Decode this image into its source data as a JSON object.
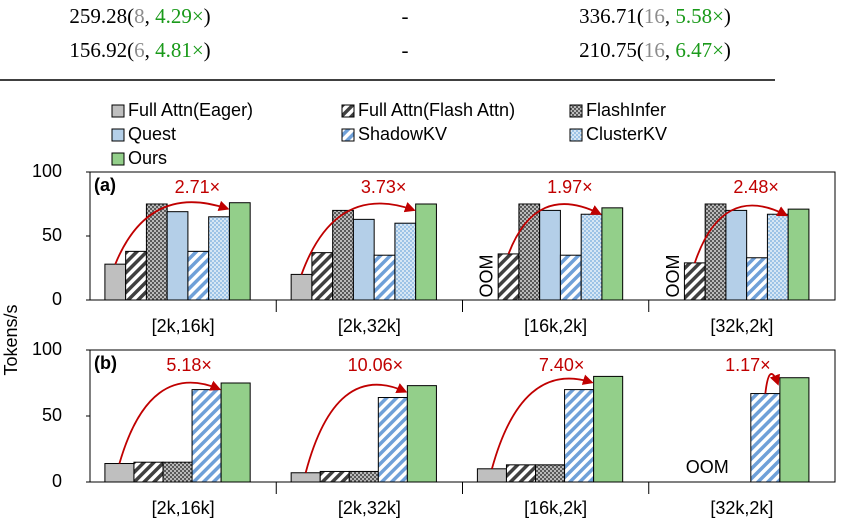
{
  "table": {
    "rows": [
      [
        {
          "parts": [
            "259.28(",
            "8",
            ", ",
            "4.29×",
            ")"
          ]
        },
        {
          "parts": [
            "-"
          ]
        },
        {
          "parts": [
            "336.71(",
            "16",
            ", ",
            "5.58×",
            ")"
          ]
        }
      ],
      [
        {
          "parts": [
            "156.92(",
            "6",
            ", ",
            "4.81×",
            ")"
          ]
        },
        {
          "parts": [
            "-"
          ]
        },
        {
          "parts": [
            "210.75(",
            "16",
            ", ",
            "6.47×",
            ")"
          ]
        }
      ]
    ]
  },
  "chart_data": [
    {
      "type": "bar",
      "title": "(a)",
      "y_label": "Tokens/s",
      "categories": [
        "[2k,16k]",
        "[2k,32k]",
        "[16k,2k]",
        "[32k,2k]"
      ],
      "ylim": [
        0,
        100
      ],
      "yticks": [
        0,
        50,
        100
      ],
      "missing_label": "OOM",
      "speedups": [
        "2.71×",
        "3.73×",
        "1.97×",
        "2.48×"
      ],
      "series": [
        {
          "name": "Full Attn(Eager)",
          "color": "#bfbfbf",
          "pattern": "solid",
          "values": [
            28,
            20,
            null,
            null
          ]
        },
        {
          "name": "Full Attn(Flash Attn)",
          "color": "#404040",
          "pattern": "hatch",
          "values": [
            38,
            37,
            36,
            29
          ]
        },
        {
          "name": "FlashInfer",
          "color": "#595959",
          "pattern": "dots",
          "values": [
            75,
            70,
            75,
            75
          ]
        },
        {
          "name": "Quest",
          "color": "#b4cfe8",
          "pattern": "solid",
          "values": [
            69,
            63,
            70,
            70
          ]
        },
        {
          "name": "ShadowKV",
          "color": "#6fa0d8",
          "pattern": "hatch",
          "values": [
            38,
            35,
            35,
            33
          ]
        },
        {
          "name": "ClusterKV",
          "color": "#9dc3e6",
          "pattern": "dots",
          "values": [
            65,
            60,
            67,
            67
          ]
        },
        {
          "name": "Ours",
          "color": "#93cf8a",
          "pattern": "solid",
          "values": [
            76,
            75,
            72,
            71
          ]
        }
      ]
    },
    {
      "type": "bar",
      "title": "(b)",
      "categories": [
        "[2k,16k]",
        "[2k,32k]",
        "[16k,2k]",
        "[32k,2k]"
      ],
      "ylim": [
        0,
        100
      ],
      "yticks": [
        0,
        50,
        100
      ],
      "missing_label": "OOM",
      "speedups": [
        "5.18×",
        "10.06×",
        "7.40×",
        "1.17×"
      ],
      "series": [
        {
          "name": "Full Attn(Eager)",
          "values": [
            14,
            7,
            10,
            null
          ]
        },
        {
          "name": "Full Attn(Flash Attn)",
          "values": [
            15,
            8,
            13,
            null
          ]
        },
        {
          "name": "FlashInfer",
          "values": [
            15,
            8,
            13,
            null
          ]
        },
        {
          "name": "ShadowKV",
          "values": [
            70,
            64,
            70,
            67
          ]
        },
        {
          "name": "Ours",
          "values": [
            75,
            73,
            80,
            79
          ]
        }
      ]
    }
  ]
}
